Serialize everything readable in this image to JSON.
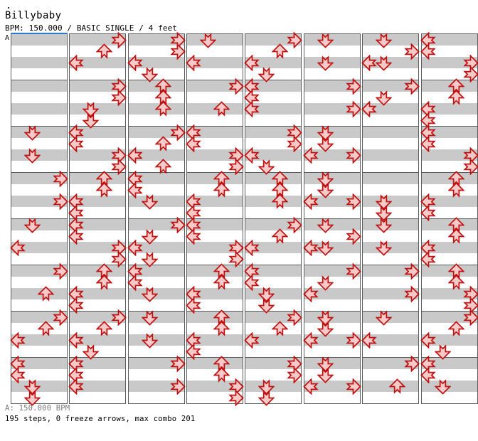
{
  "page": {
    "window_dot": ".",
    "title": "Billybaby",
    "subtitle": "BPM: 150.000 / BASIC SINGLE / 4 feet"
  },
  "footer": {
    "bpm_line": "A: 150.000 BPM",
    "stats_line": "195 steps, 0 freeze arrows, max combo 201"
  },
  "chart": {
    "section_label": "A",
    "section_marker_color": "#2b78d0",
    "band_gray": "#c9c9c9",
    "band_white": "#ffffff",
    "border_color": "#5c5c5c",
    "arrow_fill": "#f7caca",
    "arrow_stroke": "#c01010",
    "columns": 8,
    "measures_per_column": 8,
    "beats_per_measure": 4,
    "total_steps": 195,
    "freeze_arrows": 0,
    "max_combo": 201,
    "directions": {
      "L": "left",
      "D": "down",
      "U": "up",
      "R": "right"
    },
    "note_format": "column:measure:beat:direction",
    "notes": [
      "0:2:0:D",
      "0:2:2:D",
      "0:3:0:R",
      "0:3:2:R",
      "0:4:0:D",
      "0:4:2:L",
      "0:5:0:R",
      "0:5:2:U",
      "0:6:0:R",
      "0:6:1:U",
      "0:6:2:L",
      "0:7:0:L",
      "0:7:1:L",
      "0:7:2:D",
      "0:7:3:D",
      "1:0:0:R",
      "1:0:1:U",
      "1:0:2:L",
      "1:1:0:R",
      "1:1:1:R",
      "1:1:2:D",
      "1:1:3:D",
      "1:2:0:L",
      "1:2:1:L",
      "1:2:2:R",
      "1:2:3:R",
      "1:3:0:U",
      "1:3:1:U",
      "1:3:2:L",
      "1:3:3:L",
      "1:4:0:L",
      "1:4:1:L",
      "1:4:2:R",
      "1:4:3:R",
      "1:5:0:U",
      "1:5:1:U",
      "1:5:2:L",
      "1:5:3:L",
      "1:6:0:R",
      "1:6:1:U",
      "1:6:2:L",
      "1:6:3:D",
      "1:7:0:L",
      "1:7:1:L",
      "1:7:2:L",
      "2:0:0:R",
      "2:0:1:R",
      "2:0:2:L",
      "2:0:3:D",
      "2:1:0:U",
      "2:1:1:U",
      "2:1:2:U",
      "2:2:0:R",
      "2:2:1:U",
      "2:2:2:L",
      "2:2:3:U",
      "2:3:0:L",
      "2:3:1:L",
      "2:3:2:D",
      "2:4:0:R",
      "2:4:1:D",
      "2:4:2:L",
      "2:4:3:D",
      "2:5:0:L",
      "2:5:1:L",
      "2:5:2:D",
      "2:6:0:D",
      "2:6:2:D",
      "2:7:0:R",
      "2:7:2:R",
      "3:0:0:D",
      "3:0:2:L",
      "3:1:0:R",
      "3:1:2:U",
      "3:2:0:L",
      "3:2:1:L",
      "3:2:2:R",
      "3:2:3:R",
      "3:3:0:U",
      "3:3:1:U",
      "3:3:2:L",
      "3:3:3:L",
      "3:4:0:L",
      "3:4:1:L",
      "3:4:2:R",
      "3:4:3:R",
      "3:5:0:U",
      "3:5:1:U",
      "3:5:2:L",
      "3:5:3:L",
      "3:6:0:U",
      "3:6:1:U",
      "3:6:2:L",
      "3:6:3:L",
      "3:7:0:U",
      "3:7:1:U",
      "3:7:2:R",
      "3:7:3:R",
      "4:0:0:R",
      "4:0:1:U",
      "4:0:2:L",
      "4:0:3:D",
      "4:1:0:L",
      "4:1:1:L",
      "4:1:2:L",
      "4:2:0:R",
      "4:2:1:R",
      "4:2:2:L",
      "4:2:3:D",
      "4:3:0:U",
      "4:3:1:U",
      "4:3:2:U",
      "4:4:0:R",
      "4:4:1:U",
      "4:4:2:L",
      "4:5:0:L",
      "4:5:1:L",
      "4:5:2:D",
      "4:5:3:D",
      "4:6:0:R",
      "4:6:1:U",
      "4:6:2:L",
      "4:7:0:R",
      "4:7:1:R",
      "4:7:2:D",
      "4:7:3:D",
      "5:0:0:D",
      "5:0:2:D",
      "5:1:0:R",
      "5:1:2:R",
      "5:2:0:D",
      "5:2:1:D",
      "5:2:2:L",
      "5:2:2:R",
      "5:3:0:D",
      "5:3:1:D",
      "5:3:2:L",
      "5:3:2:R",
      "5:4:0:D",
      "5:4:1:R",
      "5:4:2:L",
      "5:4:2:D",
      "5:5:0:R",
      "5:5:1:D",
      "5:5:2:L",
      "5:6:0:D",
      "5:6:1:D",
      "5:6:2:L",
      "5:6:2:R",
      "5:7:0:D",
      "5:7:1:D",
      "5:7:2:L",
      "5:7:2:R",
      "6:0:0:D",
      "6:0:1:R",
      "6:0:2:L",
      "6:0:2:D",
      "6:1:0:R",
      "6:1:1:D",
      "6:1:2:L",
      "6:3:2:D",
      "6:3:3:D",
      "6:4:0:D",
      "6:4:2:D",
      "6:5:0:R",
      "6:5:2:R",
      "6:6:0:D",
      "6:6:2:L",
      "6:7:0:R",
      "6:7:2:U",
      "7:0:0:L",
      "7:0:1:L",
      "7:0:2:R",
      "7:0:3:R",
      "7:1:0:U",
      "7:1:1:U",
      "7:1:2:L",
      "7:1:3:L",
      "7:2:0:L",
      "7:2:1:L",
      "7:2:2:R",
      "7:2:3:R",
      "7:3:0:U",
      "7:3:1:U",
      "7:3:2:L",
      "7:3:3:L",
      "7:4:0:U",
      "7:4:1:U",
      "7:4:2:L",
      "7:4:3:L",
      "7:5:0:U",
      "7:5:1:U",
      "7:5:2:R",
      "7:5:3:R",
      "7:6:0:R",
      "7:6:1:U",
      "7:6:2:L",
      "7:6:3:D",
      "7:7:0:L",
      "7:7:1:L",
      "7:7:2:D"
    ]
  }
}
